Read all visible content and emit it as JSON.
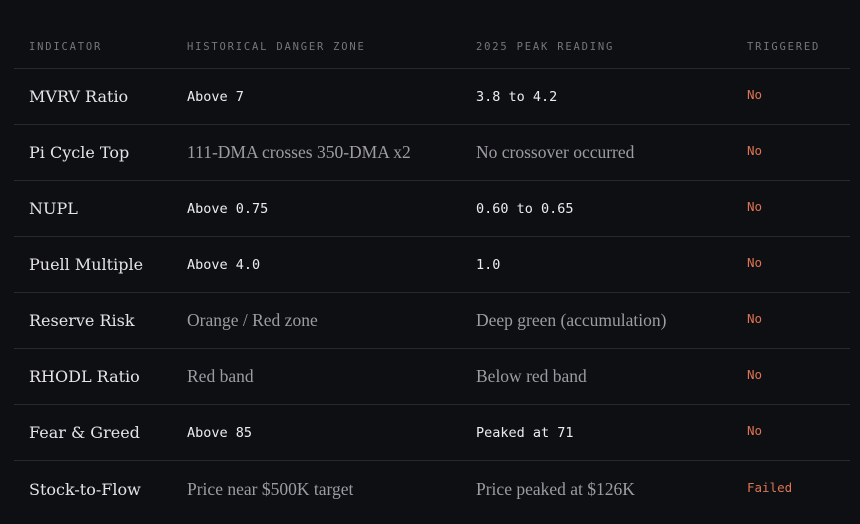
{
  "table": {
    "headers": [
      "INDICATOR",
      "HISTORICAL DANGER ZONE",
      "2025 PEAK READING",
      "TRIGGERED"
    ],
    "rows": [
      [
        "MVRV Ratio",
        "Above 7",
        "3.8 to 4.2",
        "No"
      ],
      [
        "Pi Cycle Top",
        "111-DMA crosses 350-DMA x2",
        "No crossover occurred",
        "No"
      ],
      [
        "NUPL",
        "Above 0.75",
        "0.60 to 0.65",
        "No"
      ],
      [
        "Puell Multiple",
        "Above 4.0",
        "1.0",
        "No"
      ],
      [
        "Reserve Risk",
        "Orange / Red zone",
        "Deep green (accumulation)",
        "No"
      ],
      [
        "RHODL Ratio",
        "Red band",
        "Below red band",
        "No"
      ],
      [
        "Fear & Greed",
        "Above 85",
        "Peaked at 71",
        "No"
      ],
      [
        "Stock-to-Flow",
        "Price near $500K target",
        "Price peaked at $126K",
        "Failed"
      ]
    ]
  }
}
